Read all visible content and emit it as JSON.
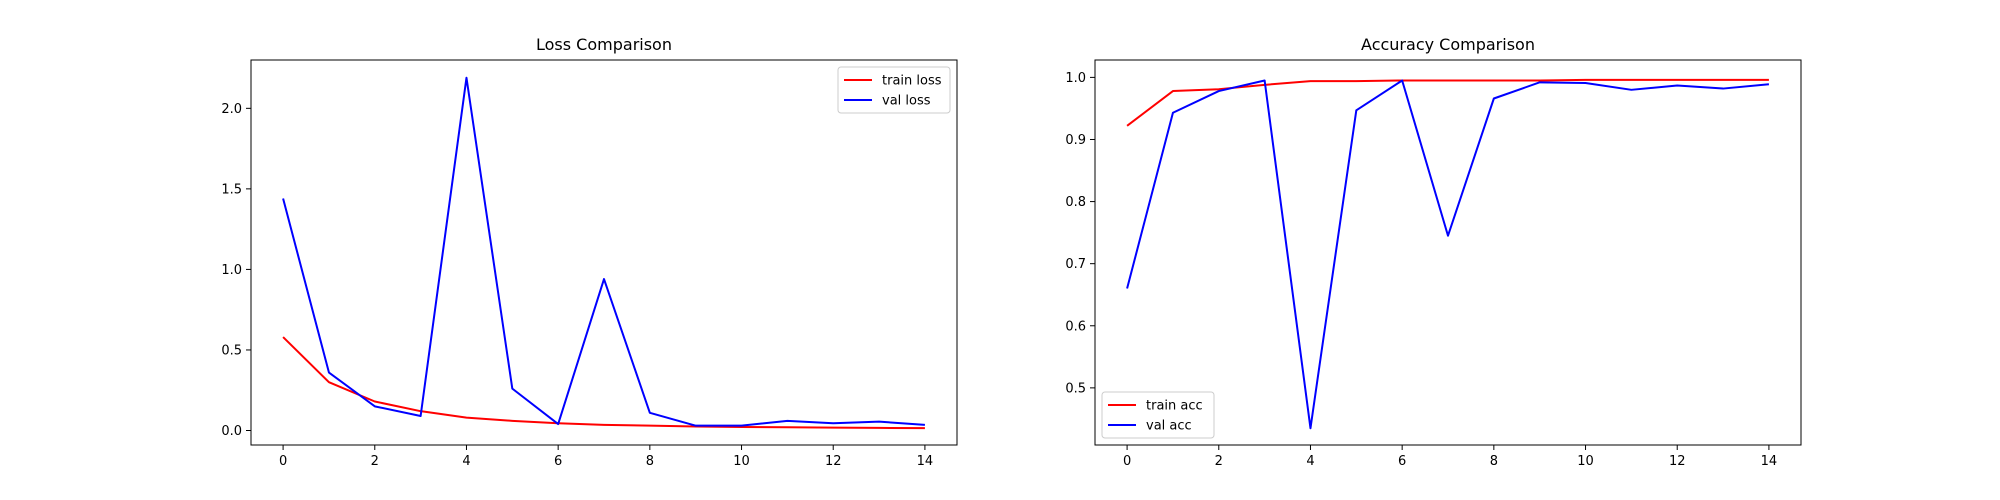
{
  "chart_data": [
    {
      "type": "line",
      "title": "Loss Comparison",
      "xlabel": "",
      "ylabel": "",
      "x": [
        0,
        1,
        2,
        3,
        4,
        5,
        6,
        7,
        8,
        9,
        10,
        11,
        12,
        13,
        14
      ],
      "xlim": [
        -0.7,
        14.7
      ],
      "ylim": [
        -0.09,
        2.3
      ],
      "xticks": [
        0,
        2,
        4,
        6,
        8,
        10,
        12,
        14
      ],
      "yticks": [
        0.0,
        0.5,
        1.0,
        1.5,
        2.0
      ],
      "ytick_labels": [
        "0.0",
        "0.5",
        "1.0",
        "1.5",
        "2.0"
      ],
      "legend_position": "upper right",
      "grid": false,
      "series": [
        {
          "name": "train loss",
          "color": "#ff0000",
          "values": [
            0.58,
            0.3,
            0.18,
            0.12,
            0.08,
            0.06,
            0.045,
            0.035,
            0.03,
            0.025,
            0.022,
            0.02,
            0.018,
            0.016,
            0.015
          ]
        },
        {
          "name": "val loss",
          "color": "#0000ff",
          "values": [
            1.44,
            0.36,
            0.15,
            0.09,
            2.19,
            0.26,
            0.04,
            0.94,
            0.11,
            0.03,
            0.03,
            0.06,
            0.045,
            0.055,
            0.035
          ]
        }
      ]
    },
    {
      "type": "line",
      "title": "Accuracy Comparison",
      "xlabel": "",
      "ylabel": "",
      "x": [
        0,
        1,
        2,
        3,
        4,
        5,
        6,
        7,
        8,
        9,
        10,
        11,
        12,
        13,
        14
      ],
      "xlim": [
        -0.7,
        14.7
      ],
      "ylim": [
        0.408,
        1.028
      ],
      "xticks": [
        0,
        2,
        4,
        6,
        8,
        10,
        12,
        14
      ],
      "yticks": [
        0.5,
        0.6,
        0.7,
        0.8,
        0.9,
        1.0
      ],
      "ytick_labels": [
        "0.5",
        "0.6",
        "0.7",
        "0.8",
        "0.9",
        "1.0"
      ],
      "legend_position": "lower left",
      "grid": false,
      "series": [
        {
          "name": "train acc",
          "color": "#ff0000",
          "values": [
            0.922,
            0.978,
            0.981,
            0.988,
            0.994,
            0.994,
            0.995,
            0.995,
            0.995,
            0.995,
            0.996,
            0.996,
            0.996,
            0.996,
            0.996
          ]
        },
        {
          "name": "val acc",
          "color": "#0000ff",
          "values": [
            0.66,
            0.943,
            0.978,
            0.995,
            0.435,
            0.947,
            0.995,
            0.745,
            0.966,
            0.992,
            0.991,
            0.98,
            0.987,
            0.982,
            0.989
          ]
        }
      ]
    }
  ]
}
